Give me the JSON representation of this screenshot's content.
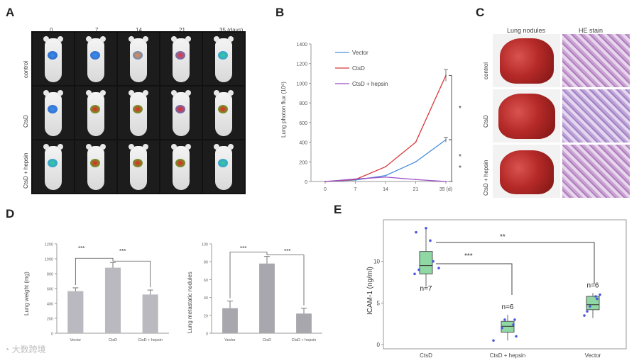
{
  "panel_labels": {
    "a": "A",
    "b": "B",
    "c": "C",
    "d": "D",
    "e": "E"
  },
  "panel_a": {
    "columns": [
      "0",
      "7",
      "14",
      "21",
      "35 (days)"
    ],
    "rows": [
      "control",
      "CtsD",
      "CtsD + hepsin"
    ]
  },
  "panel_c": {
    "columns": [
      "Lung nodules",
      "HE stain"
    ],
    "rows": [
      "control",
      "CtsD",
      "CtsD + hepsin"
    ]
  },
  "watermark": "大数跨境",
  "colors": {
    "vector": "#4a90d9",
    "ctsd": "#d9383a",
    "hepsin": "#9b4fc6",
    "bar": "#b9b9bf",
    "bar_dark": "#a7a7ad",
    "box": "#8fd7a3",
    "dot": "#4b58e0"
  },
  "chart_data": [
    {
      "id": "B",
      "type": "line",
      "title": "",
      "xlabel": "",
      "ylabel": "Lung photon flux (10⁶)",
      "x": [
        0,
        7,
        14,
        21,
        35
      ],
      "x_tick_labels": [
        "0",
        "7",
        "14",
        "21",
        "35 (d)"
      ],
      "y_ticks": [
        0,
        200,
        400,
        600,
        800,
        1000,
        1200,
        1400
      ],
      "ylim": [
        0,
        1400
      ],
      "series": [
        {
          "name": "Vector",
          "values": [
            0,
            15,
            60,
            200,
            425
          ]
        },
        {
          "name": "CtsD",
          "values": [
            0,
            20,
            150,
            400,
            1080
          ]
        },
        {
          "name": "CtsD + hepsin",
          "values": [
            0,
            25,
            45,
            20,
            0
          ]
        }
      ],
      "annotations": [
        "*",
        "*",
        "*"
      ]
    },
    {
      "id": "D1",
      "type": "bar",
      "title": "",
      "xlabel": "",
      "ylabel": "Lung weight (mg)",
      "categories": [
        "Vector",
        "CtsD",
        "CtsD + hepsin"
      ],
      "values": [
        565,
        880,
        520
      ],
      "errors": [
        45,
        70,
        60
      ],
      "y_ticks": [
        0,
        200,
        400,
        600,
        800,
        1000,
        1200
      ],
      "ylim": [
        0,
        1200
      ],
      "annotations": [
        "***",
        "***"
      ]
    },
    {
      "id": "D2",
      "type": "bar",
      "title": "",
      "xlabel": "",
      "ylabel": "Lung metastatic nodules",
      "categories": [
        "Vector",
        "CtsD",
        "CtsD + hepsin"
      ],
      "values": [
        28,
        78,
        22
      ],
      "errors": [
        8,
        8,
        6
      ],
      "y_ticks": [
        0,
        20,
        40,
        60,
        80,
        100
      ],
      "ylim": [
        0,
        100
      ],
      "annotations": [
        "***",
        "***"
      ]
    },
    {
      "id": "E",
      "type": "box",
      "title": "",
      "xlabel": "",
      "ylabel": "ICAM-1 (ng/ml)",
      "categories": [
        "CtsD",
        "CtsD + hepsin",
        "Vector"
      ],
      "boxes": [
        {
          "q1": 8.5,
          "median": 9.5,
          "q3": 11.2,
          "whisker_low": 7.0,
          "whisker_high": 14.0,
          "points": [
            8.5,
            12.5,
            13.5,
            14.0,
            9.0,
            10.0,
            9.2
          ],
          "n_label": "n=7"
        },
        {
          "q1": 1.5,
          "median": 2.2,
          "q3": 2.8,
          "whisker_low": 0.5,
          "whisker_high": 3.6,
          "points": [
            0.5,
            2.0,
            3.0,
            1.0,
            3.0,
            2.4
          ],
          "n_label": "n=6"
        },
        {
          "q1": 4.2,
          "median": 4.8,
          "q3": 5.8,
          "whisker_low": 3.2,
          "whisker_high": 6.2,
          "points": [
            3.5,
            4.0,
            6.0,
            5.5,
            4.6,
            5.8
          ],
          "n_label": "n=6"
        }
      ],
      "y_ticks": [
        0,
        5,
        10
      ],
      "ylim": [
        -0.5,
        15
      ],
      "annotations": [
        "***",
        "**"
      ]
    }
  ]
}
